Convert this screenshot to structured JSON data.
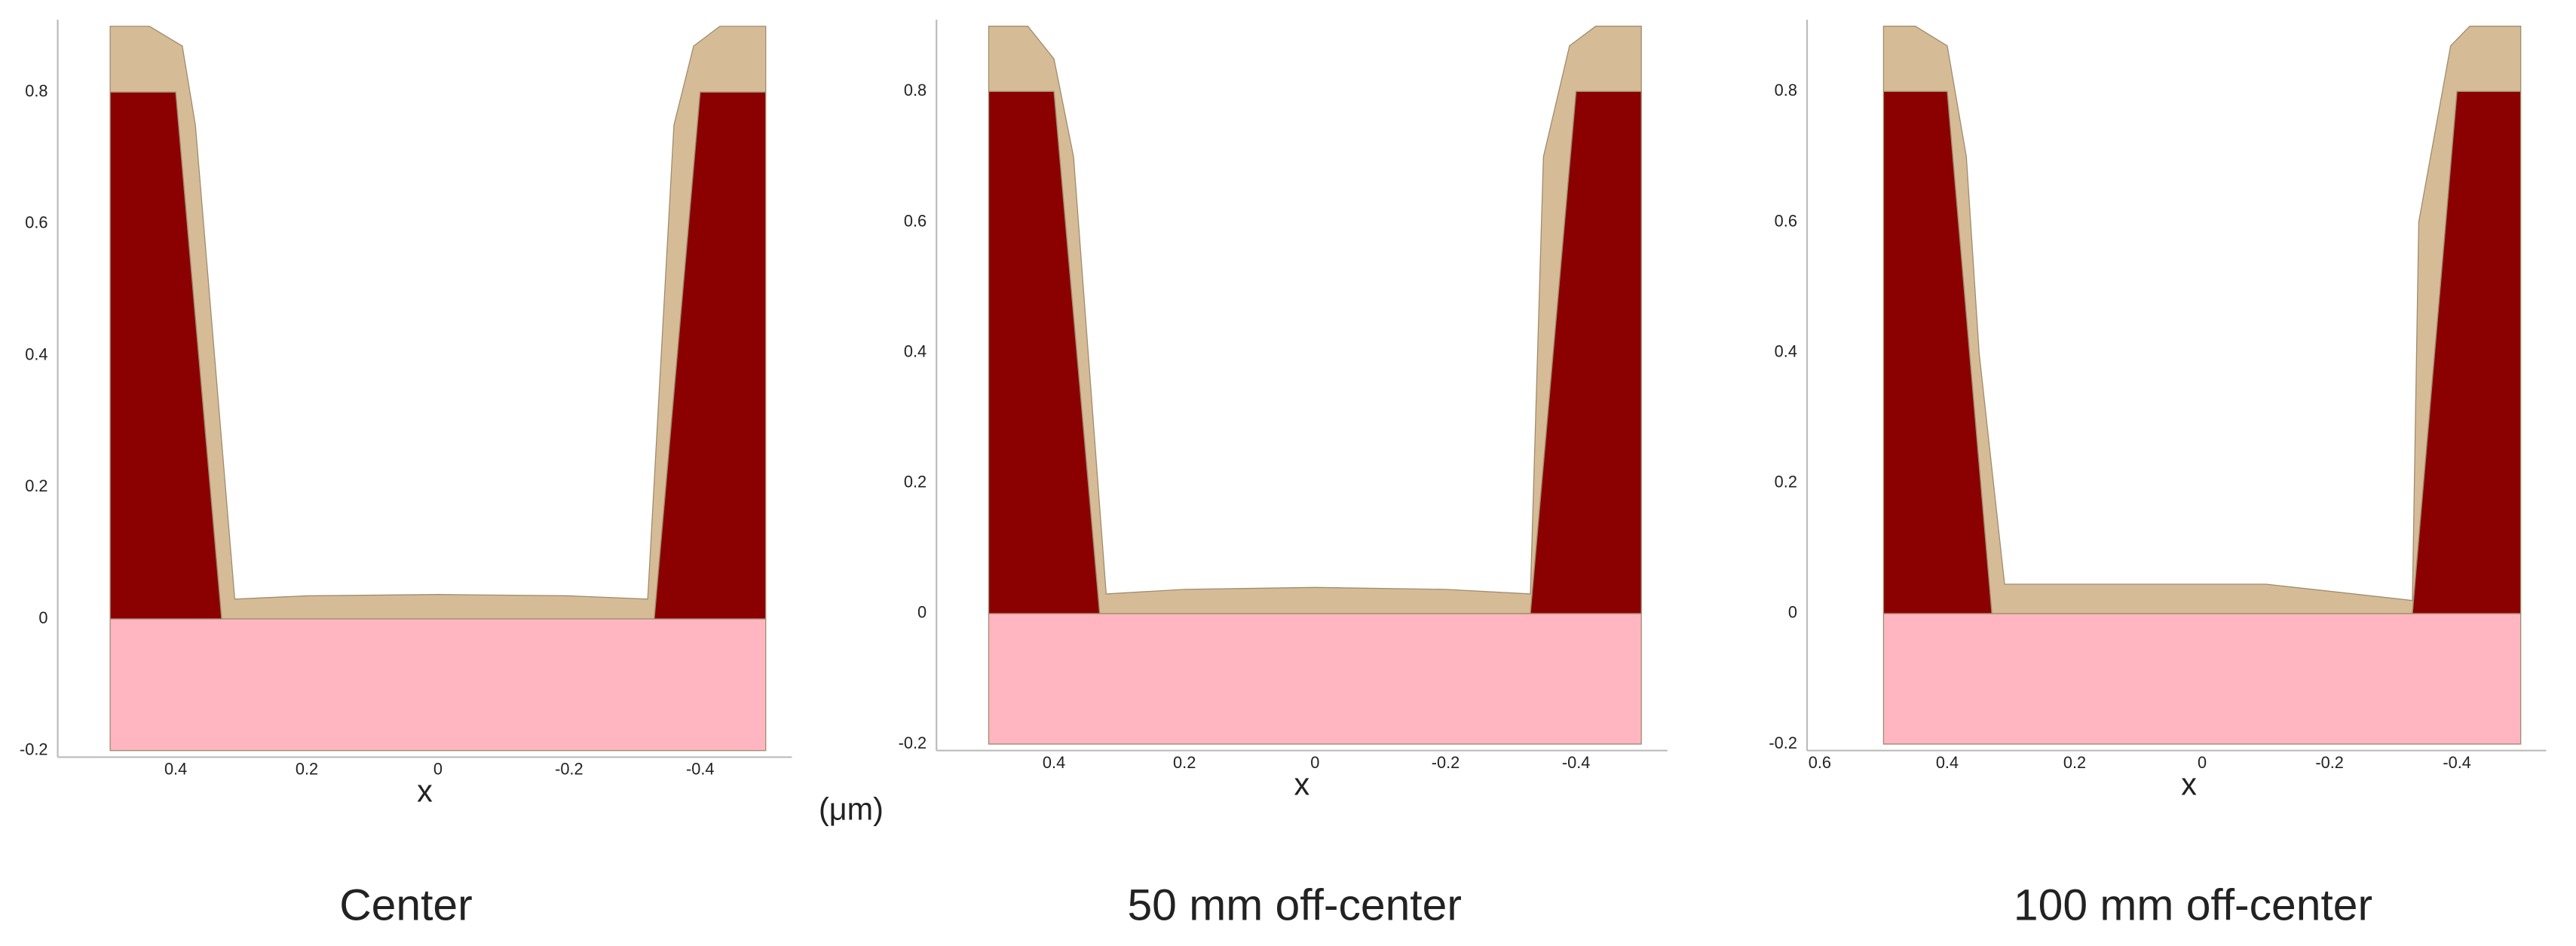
{
  "unit_label": "(μm)",
  "chart_data": [
    {
      "type": "profile",
      "caption": "Center",
      "x_label": "x",
      "xlim": [
        0.58,
        -0.54
      ],
      "ylim": [
        -0.21,
        0.91
      ],
      "xticks": [
        0.4,
        0.2,
        0,
        -0.2,
        -0.4
      ],
      "yticks": [
        -0.2,
        0,
        0.2,
        0.4,
        0.6,
        0.8
      ],
      "series": [
        {
          "color": "#ffb6c1",
          "x": [
            0.5,
            -0.5,
            -0.5,
            0.5
          ],
          "y": [
            -0.2,
            -0.2,
            0,
            0
          ]
        },
        {
          "color": "#d6bc96",
          "x": [
            0.5,
            0.5,
            0.44,
            0.39,
            0.37,
            0.31,
            0.2,
            0,
            -0.2,
            -0.32,
            -0.36,
            -0.39,
            -0.43,
            -0.5,
            -0.5,
            -0.4,
            -0.33,
            0.33,
            0.4
          ],
          "y": [
            0.8,
            0.9,
            0.9,
            0.87,
            0.75,
            0.03,
            0.035,
            0.037,
            0.035,
            0.03,
            0.75,
            0.87,
            0.9,
            0.9,
            0.8,
            0.8,
            0,
            0,
            0.8
          ]
        },
        {
          "color": "#8b0000",
          "x": [
            0.5,
            0.5,
            0.4,
            0.33
          ],
          "y": [
            0,
            0.8,
            0.8,
            0
          ]
        },
        {
          "color": "#8b0000",
          "x": [
            -0.33,
            -0.4,
            -0.5,
            -0.5
          ],
          "y": [
            0,
            0.8,
            0.8,
            0
          ]
        }
      ]
    },
    {
      "type": "profile",
      "caption": "50 mm off-center",
      "x_label": "x",
      "xlim": [
        0.58,
        -0.54
      ],
      "ylim": [
        -0.21,
        0.91
      ],
      "xticks": [
        0.4,
        0.2,
        0,
        -0.2,
        -0.4
      ],
      "yticks": [
        -0.2,
        0,
        0.2,
        0.4,
        0.6,
        0.8
      ],
      "series": [
        {
          "color": "#ffb6c1",
          "x": [
            0.5,
            -0.5,
            -0.5,
            0.5
          ],
          "y": [
            -0.2,
            -0.2,
            0,
            0
          ]
        },
        {
          "color": "#d6bc96",
          "x": [
            0.5,
            0.5,
            0.44,
            0.4,
            0.37,
            0.32,
            0.2,
            0,
            -0.2,
            -0.33,
            -0.35,
            -0.39,
            -0.43,
            -0.5,
            -0.5,
            -0.4,
            -0.33,
            0.33,
            0.4
          ],
          "y": [
            0.8,
            0.9,
            0.9,
            0.85,
            0.7,
            0.03,
            0.037,
            0.04,
            0.037,
            0.03,
            0.7,
            0.87,
            0.9,
            0.9,
            0.8,
            0.8,
            0,
            0,
            0.8
          ]
        },
        {
          "color": "#8b0000",
          "x": [
            0.5,
            0.5,
            0.4,
            0.33
          ],
          "y": [
            0,
            0.8,
            0.8,
            0
          ]
        },
        {
          "color": "#8b0000",
          "x": [
            -0.33,
            -0.4,
            -0.5,
            -0.5
          ],
          "y": [
            0,
            0.8,
            0.8,
            0
          ]
        }
      ]
    },
    {
      "type": "profile",
      "caption": "100 mm off-center",
      "x_label": "x",
      "xlim": [
        0.62,
        -0.54
      ],
      "ylim": [
        -0.21,
        0.91
      ],
      "xticks": [
        0.6,
        0.4,
        0.2,
        0,
        -0.2,
        -0.4
      ],
      "yticks": [
        -0.2,
        0,
        0.2,
        0.4,
        0.6,
        0.8
      ],
      "series": [
        {
          "color": "#ffb6c1",
          "x": [
            0.5,
            -0.5,
            -0.5,
            0.5
          ],
          "y": [
            -0.2,
            -0.2,
            0,
            0
          ]
        },
        {
          "color": "#d6bc96",
          "x": [
            0.5,
            0.5,
            0.45,
            0.4,
            0.37,
            0.35,
            0.31,
            0.2,
            -0.1,
            -0.33,
            -0.34,
            -0.39,
            -0.42,
            -0.5,
            -0.5,
            -0.4,
            -0.33,
            0.33,
            0.4
          ],
          "y": [
            0.8,
            0.9,
            0.9,
            0.87,
            0.7,
            0.4,
            0.045,
            0.045,
            0.045,
            0.02,
            0.6,
            0.87,
            0.9,
            0.9,
            0.8,
            0.8,
            0,
            0,
            0.8
          ]
        },
        {
          "color": "#8b0000",
          "x": [
            0.5,
            0.5,
            0.4,
            0.33
          ],
          "y": [
            0,
            0.8,
            0.8,
            0
          ]
        },
        {
          "color": "#8b0000",
          "x": [
            -0.33,
            -0.4,
            -0.5,
            -0.5
          ],
          "y": [
            0,
            0.8,
            0.8,
            0
          ]
        }
      ]
    }
  ]
}
